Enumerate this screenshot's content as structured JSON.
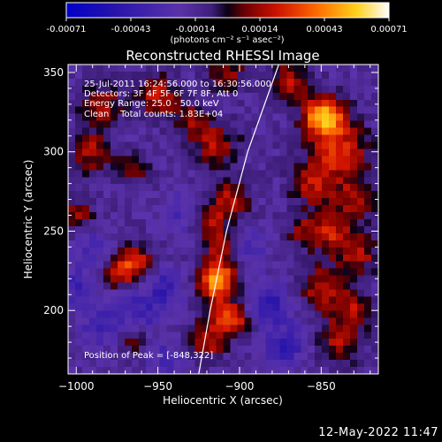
{
  "chart_data": {
    "type": "heatmap",
    "title": "Reconstructed RHESSI Image",
    "xlabel": "Heliocentric X (arcsec)",
    "ylabel": "Heliocentric Y (arcsec)",
    "xlim": [
      -1005,
      -815
    ],
    "ylim": [
      160,
      355
    ],
    "x_ticks": [
      -1000,
      -950,
      -900,
      -850
    ],
    "y_ticks": [
      200,
      250,
      300,
      350
    ],
    "colorbar": {
      "unit": "(photons cm⁻² s⁻¹ asec⁻²)",
      "range": [
        -0.00071,
        0.00071
      ],
      "ticks": [
        "-0.00071",
        "-0.00043",
        "-0.00014",
        "0.00014",
        "0.00043",
        "0.00071"
      ]
    },
    "info_lines": [
      "25-Jul-2011 16:24:56.000 to 16:30:56.000",
      "Detectors: 3F 4F 5F 6F 7F 8F, Att 0",
      "Energy Range: 25.0 - 50.0 keV",
      "Clean    Total counts: 1.83E+04"
    ],
    "peak_label": "Position of Peak = [-848,322]",
    "peak": [
      -848,
      322
    ],
    "blobs": [
      {
        "x": -848,
        "y": 322,
        "v": 1.0,
        "r": 9
      },
      {
        "x": -838,
        "y": 300,
        "v": 0.55,
        "r": 12
      },
      {
        "x": -855,
        "y": 280,
        "v": 0.45,
        "r": 10
      },
      {
        "x": -830,
        "y": 270,
        "v": 0.4,
        "r": 9
      },
      {
        "x": -845,
        "y": 250,
        "v": 0.5,
        "r": 9
      },
      {
        "x": -828,
        "y": 235,
        "v": 0.45,
        "r": 9
      },
      {
        "x": -850,
        "y": 215,
        "v": 0.45,
        "r": 10
      },
      {
        "x": -830,
        "y": 200,
        "v": 0.4,
        "r": 9
      },
      {
        "x": -840,
        "y": 180,
        "v": 0.4,
        "r": 10
      },
      {
        "x": -870,
        "y": 345,
        "v": 0.45,
        "r": 9
      },
      {
        "x": -862,
        "y": 250,
        "v": 0.3,
        "r": 7
      },
      {
        "x": -908,
        "y": 350,
        "v": 0.4,
        "r": 8
      },
      {
        "x": -915,
        "y": 305,
        "v": 0.45,
        "r": 10
      },
      {
        "x": -905,
        "y": 270,
        "v": 0.45,
        "r": 8
      },
      {
        "x": -918,
        "y": 255,
        "v": 0.45,
        "r": 8
      },
      {
        "x": -912,
        "y": 238,
        "v": 0.4,
        "r": 7
      },
      {
        "x": -914,
        "y": 219,
        "v": 0.95,
        "r": 8
      },
      {
        "x": -910,
        "y": 197,
        "v": 0.55,
        "r": 8
      },
      {
        "x": -920,
        "y": 180,
        "v": 0.45,
        "r": 8
      },
      {
        "x": -900,
        "y": 192,
        "v": 0.35,
        "r": 6
      },
      {
        "x": -965,
        "y": 230,
        "v": 0.6,
        "r": 8
      },
      {
        "x": -975,
        "y": 222,
        "v": 0.4,
        "r": 6
      },
      {
        "x": -950,
        "y": 335,
        "v": 0.5,
        "r": 9
      },
      {
        "x": -985,
        "y": 330,
        "v": 0.45,
        "r": 9
      },
      {
        "x": -992,
        "y": 300,
        "v": 0.45,
        "r": 9
      },
      {
        "x": -965,
        "y": 290,
        "v": 0.35,
        "r": 7
      },
      {
        "x": -1000,
        "y": 260,
        "v": 0.4,
        "r": 7
      },
      {
        "x": -965,
        "y": 180,
        "v": 0.3,
        "r": 7
      },
      {
        "x": -930,
        "y": 320,
        "v": 0.35,
        "r": 7
      },
      {
        "x": -882,
        "y": 205,
        "v": -0.45,
        "r": 9
      },
      {
        "x": -872,
        "y": 178,
        "v": -0.4,
        "r": 9
      },
      {
        "x": -945,
        "y": 215,
        "v": -0.35,
        "r": 8
      },
      {
        "x": -960,
        "y": 200,
        "v": -0.3,
        "r": 10
      },
      {
        "x": -990,
        "y": 240,
        "v": -0.25,
        "r": 8
      },
      {
        "x": -1000,
        "y": 215,
        "v": -0.3,
        "r": 8
      },
      {
        "x": -935,
        "y": 260,
        "v": -0.25,
        "r": 9
      },
      {
        "x": -985,
        "y": 190,
        "v": -0.3,
        "r": 9
      },
      {
        "x": -945,
        "y": 170,
        "v": -0.25,
        "r": 8
      },
      {
        "x": -895,
        "y": 240,
        "v": -0.25,
        "r": 8
      }
    ],
    "limb": [
      [
        -925,
        160
      ],
      [
        -918,
        200
      ],
      [
        -908,
        250
      ],
      [
        -895,
        300
      ],
      [
        -876,
        355
      ]
    ]
  },
  "timestamp": "12-May-2022 11:47"
}
